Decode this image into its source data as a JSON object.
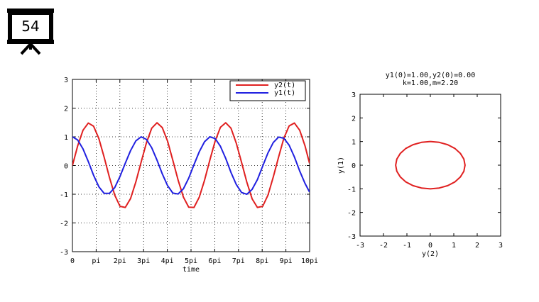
{
  "slide": {
    "number": "54"
  },
  "chart_data": [
    {
      "type": "line",
      "xlabel": "time",
      "ylabel": "",
      "xlim": [
        0,
        31.4159
      ],
      "ylim": [
        -3,
        3
      ],
      "x_ticks": [
        {
          "value": 0,
          "label": "0"
        },
        {
          "value": 3.14159,
          "label": "pi"
        },
        {
          "value": 6.28319,
          "label": "2pi"
        },
        {
          "value": 9.42478,
          "label": "3pi"
        },
        {
          "value": 12.5664,
          "label": "4pi"
        },
        {
          "value": 15.708,
          "label": "5pi"
        },
        {
          "value": 18.8496,
          "label": "6pi"
        },
        {
          "value": 21.9911,
          "label": "7pi"
        },
        {
          "value": 25.1327,
          "label": "8pi"
        },
        {
          "value": 28.2743,
          "label": "9pi"
        },
        {
          "value": 31.4159,
          "label": "10pi"
        }
      ],
      "y_ticks": [
        -3,
        -2,
        -1,
        0,
        1,
        2,
        3
      ],
      "grid": true,
      "legend_position": "top-right",
      "series": [
        {
          "name": "y2(t)",
          "color": "#e02020",
          "x": [
            0,
            0.7,
            1.4,
            2.1,
            2.8,
            3.5,
            4.2,
            4.9,
            5.6,
            6.3,
            7.0,
            7.7,
            8.4,
            9.1,
            9.8,
            10.5,
            11.2,
            11.9,
            12.6,
            13.3,
            14.0,
            14.7,
            15.4,
            16.1,
            16.8,
            17.5,
            18.2,
            18.9,
            19.6,
            20.3,
            21.0,
            21.7,
            22.4,
            23.1,
            23.8,
            24.5,
            25.2,
            25.9,
            26.6,
            27.3,
            28.0,
            28.7,
            29.4,
            30.1,
            30.8,
            31.4
          ],
          "y": [
            0,
            0.69,
            1.23,
            1.48,
            1.37,
            0.94,
            0.29,
            -0.41,
            -1.03,
            -1.42,
            -1.46,
            -1.15,
            -0.57,
            0.12,
            0.79,
            1.3,
            1.49,
            1.32,
            0.85,
            0.18,
            -0.51,
            -1.1,
            -1.45,
            -1.46,
            -1.1,
            -0.51,
            0.19,
            0.85,
            1.33,
            1.49,
            1.3,
            0.78,
            0.11,
            -0.58,
            -1.16,
            -1.46,
            -1.42,
            -1.03,
            -0.4,
            0.29,
            0.95,
            1.38,
            1.48,
            1.23,
            0.69,
            0.08
          ]
        },
        {
          "name": "y1(t)",
          "color": "#2020e0",
          "x": [
            0,
            0.7,
            1.4,
            2.1,
            2.8,
            3.5,
            4.2,
            4.9,
            5.6,
            6.3,
            7.0,
            7.7,
            8.4,
            9.1,
            9.8,
            10.5,
            11.2,
            11.9,
            12.6,
            13.3,
            14.0,
            14.7,
            15.4,
            16.1,
            16.8,
            17.5,
            18.2,
            18.9,
            19.6,
            20.3,
            21.0,
            21.7,
            22.4,
            23.1,
            23.8,
            24.5,
            25.2,
            25.9,
            26.6,
            27.3,
            28.0,
            28.7,
            29.4,
            30.1,
            30.8,
            31.4
          ],
          "y": [
            1.0,
            0.89,
            0.58,
            0.14,
            -0.34,
            -0.74,
            -0.97,
            -0.97,
            -0.77,
            -0.38,
            0.08,
            0.52,
            0.86,
            1.0,
            0.91,
            0.62,
            0.19,
            -0.29,
            -0.7,
            -0.96,
            -0.99,
            -0.81,
            -0.44,
            0.03,
            0.48,
            0.83,
            1.0,
            0.94,
            0.67,
            0.25,
            -0.24,
            -0.66,
            -0.94,
            -1.0,
            -0.83,
            -0.49,
            -0.02,
            0.44,
            0.8,
            0.99,
            0.95,
            0.71,
            0.3,
            -0.19,
            -0.62,
            -0.92
          ]
        }
      ]
    },
    {
      "type": "line",
      "title_lines": [
        "y1(0)=1.00,y2(0)=0.00",
        "k=1.00,m=2.20"
      ],
      "xlabel": "y(2)",
      "ylabel": "y(1)",
      "xlim": [
        -3,
        3
      ],
      "ylim": [
        -3,
        3
      ],
      "x_ticks": [
        -3,
        -2,
        -1,
        0,
        1,
        2,
        3
      ],
      "y_ticks": [
        -3,
        -2,
        -1,
        0,
        1,
        2,
        3
      ],
      "grid": false,
      "series": [
        {
          "color": "#e02020",
          "x": [
            0,
            0.38,
            0.74,
            1.05,
            1.28,
            1.43,
            1.48,
            1.43,
            1.28,
            1.05,
            0.74,
            0.38,
            0,
            -0.38,
            -0.74,
            -1.05,
            -1.28,
            -1.43,
            -1.48,
            -1.43,
            -1.28,
            -1.05,
            -0.74,
            -0.38,
            0
          ],
          "y": [
            1.0,
            0.966,
            0.866,
            0.707,
            0.5,
            0.259,
            0,
            -0.259,
            -0.5,
            -0.707,
            -0.866,
            -0.966,
            -1.0,
            -0.966,
            -0.866,
            -0.707,
            -0.5,
            -0.259,
            0,
            0.259,
            0.5,
            0.707,
            0.866,
            0.966,
            1.0
          ]
        }
      ]
    }
  ]
}
